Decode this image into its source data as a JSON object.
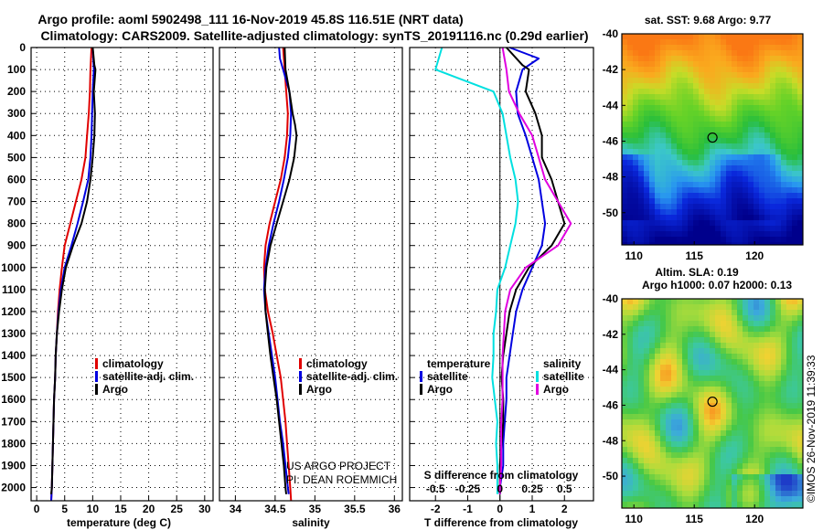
{
  "header": {
    "title_line1": "Argo profile: aoml 5902498_111 16-Nov-2019 45.8S 116.51E (NRT data)",
    "title_line2": "Climatology: CARS2009. Satellite-adjusted climatology: synTS_20191116.nc (0.29d earlier)"
  },
  "colors": {
    "climatology": "#e00000",
    "satellite": "#0000e0",
    "argo": "#000000",
    "salinity_satellite": "#00e0e0",
    "salinity_argo": "#e000e0",
    "grid": "#000000"
  },
  "depth_axis": {
    "ylim": [
      0,
      2060
    ],
    "ticks": [
      0,
      100,
      200,
      300,
      400,
      500,
      600,
      700,
      800,
      900,
      1000,
      1100,
      1200,
      1300,
      1400,
      1500,
      1600,
      1700,
      1800,
      1900,
      2000
    ]
  },
  "chart_data": [
    {
      "type": "line",
      "xlabel": "temperature (deg C)",
      "xlim": [
        -1,
        31.5
      ],
      "xticks": [
        0,
        5,
        10,
        15,
        20,
        25,
        30
      ],
      "legend": [
        "climatology",
        "satellite-adj. clim.",
        "Argo"
      ],
      "legend_position": "lower-right",
      "series": [
        {
          "name": "climatology",
          "y": [
            0,
            100,
            200,
            300,
            400,
            500,
            600,
            700,
            800,
            900,
            1000,
            1100,
            1200,
            1300,
            1400,
            1500,
            1600,
            1700,
            1800,
            1900,
            2000,
            2060
          ],
          "x": [
            9.8,
            9.6,
            9.5,
            9.3,
            9.0,
            8.7,
            8.0,
            7.0,
            6.0,
            5.0,
            4.5,
            4.1,
            3.8,
            3.6,
            3.4,
            3.3,
            3.1,
            3.0,
            2.9,
            2.8,
            2.7,
            2.6
          ]
        },
        {
          "name": "satellite-adj. clim.",
          "y": [
            0,
            100,
            200,
            300,
            400,
            500,
            600,
            700,
            800,
            900,
            1000,
            1100,
            1200,
            1300,
            1400,
            1500,
            1600,
            1700,
            1800,
            1900,
            2000,
            2060
          ],
          "x": [
            10.0,
            10.2,
            10.0,
            9.9,
            9.8,
            9.6,
            9.2,
            8.3,
            7.3,
            6.2,
            5.0,
            4.3,
            3.9,
            3.6,
            3.4,
            3.3,
            3.1,
            3.0,
            2.9,
            2.8,
            2.7,
            2.6
          ]
        },
        {
          "name": "Argo",
          "y": [
            0,
            80,
            100,
            200,
            300,
            400,
            500,
            600,
            700,
            800,
            900,
            1000,
            1100,
            1200,
            1300,
            1400,
            1500,
            1600,
            1700,
            1800,
            1900,
            2000,
            2030
          ],
          "x": [
            10.0,
            10.3,
            10.5,
            10.2,
            10.4,
            10.3,
            10.0,
            9.6,
            9.0,
            8.0,
            6.5,
            5.2,
            4.5,
            4.0,
            3.6,
            3.4,
            3.3,
            3.1,
            3.0,
            2.9,
            2.8,
            2.7,
            2.6
          ]
        }
      ]
    },
    {
      "type": "line",
      "xlabel": "salinity",
      "xlim": [
        33.8,
        36.1
      ],
      "xticks": [
        34,
        34.5,
        35,
        35.5,
        36
      ],
      "xticklabels": [
        "34",
        "34.5",
        "35",
        "35.5",
        "36"
      ],
      "legend": [
        "climatology",
        "satellite-adj. clim.",
        "Argo"
      ],
      "legend_position": "lower-right",
      "annotation": [
        "US ARGO PROJECT",
        "PI: DEAN ROEMMICH"
      ],
      "series": [
        {
          "name": "climatology",
          "y": [
            0,
            100,
            200,
            300,
            400,
            500,
            600,
            700,
            800,
            900,
            1000,
            1100,
            1200,
            1300,
            1400,
            1500,
            1600,
            1700,
            1800,
            1900,
            2000,
            2060
          ],
          "x": [
            34.6,
            34.62,
            34.64,
            34.66,
            34.65,
            34.62,
            34.57,
            34.5,
            34.43,
            34.38,
            34.36,
            34.37,
            34.41,
            34.47,
            34.52,
            34.57,
            34.6,
            34.63,
            34.65,
            34.67,
            34.69,
            34.7
          ]
        },
        {
          "name": "satellite-adj. clim.",
          "y": [
            0,
            50,
            100,
            200,
            300,
            400,
            500,
            600,
            700,
            800,
            900,
            1000,
            1100,
            1200,
            1300,
            1400,
            1500,
            1600,
            1700,
            1800,
            1900,
            2000,
            2030
          ],
          "x": [
            34.55,
            34.56,
            34.6,
            34.68,
            34.7,
            34.69,
            34.66,
            34.61,
            34.55,
            34.48,
            34.42,
            34.38,
            34.36,
            34.38,
            34.42,
            34.46,
            34.5,
            34.53,
            34.56,
            34.6,
            34.63,
            34.66,
            34.67
          ]
        },
        {
          "name": "Argo",
          "y": [
            0,
            100,
            200,
            300,
            350,
            400,
            500,
            600,
            700,
            800,
            900,
            1000,
            1100,
            1200,
            1300,
            1400,
            1500,
            1600,
            1700,
            1800,
            1900,
            2000,
            2030
          ],
          "x": [
            34.62,
            34.63,
            34.68,
            34.72,
            34.75,
            34.77,
            34.74,
            34.68,
            34.6,
            34.52,
            34.44,
            34.39,
            34.37,
            34.38,
            34.41,
            34.44,
            34.48,
            34.52,
            34.55,
            34.58,
            34.61,
            34.63,
            34.64
          ]
        }
      ]
    },
    {
      "type": "line",
      "xlabel": "T difference from climatology",
      "xlim": [
        -2.8,
        2.9
      ],
      "xticks": [
        -2,
        -1,
        0,
        1,
        2
      ],
      "secondary_xlabel": "S difference from climatology",
      "secondary_xticklabels": [
        "-0.5",
        "-0.25",
        "0",
        "0.25",
        "0.5"
      ],
      "legend_temperature": {
        "title": "temperature",
        "items": [
          "satellite",
          "Argo"
        ]
      },
      "legend_salinity": {
        "title": "salinity",
        "items": [
          "satellite",
          "Argo"
        ]
      },
      "series": [
        {
          "name": "temperature satellite",
          "y": [
            0,
            50,
            100,
            200,
            300,
            400,
            500,
            600,
            700,
            800,
            900,
            1000,
            1100,
            1200,
            1300,
            1400,
            1500,
            1600,
            1700,
            1800,
            1900,
            2000,
            2030
          ],
          "x": [
            0.3,
            1.2,
            0.7,
            0.5,
            0.55,
            0.8,
            1.0,
            1.2,
            1.3,
            1.4,
            1.3,
            1.0,
            0.7,
            0.5,
            0.4,
            0.3,
            0.2,
            0.2,
            0.15,
            0.1,
            0.1,
            0.0,
            0.0
          ]
        },
        {
          "name": "temperature Argo",
          "y": [
            0,
            80,
            100,
            200,
            300,
            400,
            500,
            600,
            700,
            800,
            900,
            1000,
            1100,
            1200,
            1300,
            1400,
            1500,
            1600,
            1700,
            1800,
            1900,
            2000,
            2030
          ],
          "x": [
            0.2,
            0.7,
            0.9,
            0.8,
            1.1,
            1.3,
            1.3,
            1.6,
            1.8,
            2.0,
            1.6,
            0.9,
            0.5,
            0.3,
            0.2,
            0.1,
            0.05,
            0.1,
            0.1,
            0.05,
            0.0,
            0.0,
            0.0
          ]
        },
        {
          "name": "salinity satellite",
          "y": [
            0,
            100,
            200,
            300,
            400,
            500,
            600,
            700,
            800,
            900,
            1000,
            1100,
            1200,
            1300,
            1400,
            1500,
            1600,
            1700,
            1800,
            1900,
            2000,
            2030
          ],
          "x": [
            -0.45,
            -0.5,
            -0.05,
            0.02,
            0.05,
            0.08,
            0.12,
            0.14,
            0.12,
            0.08,
            0.04,
            -0.02,
            -0.03,
            -0.05,
            -0.05,
            -0.06,
            -0.04,
            -0.02,
            -0.03,
            -0.02,
            -0.02,
            -0.02
          ]
        },
        {
          "name": "salinity Argo",
          "y": [
            0,
            100,
            200,
            300,
            400,
            500,
            600,
            700,
            800,
            900,
            1000,
            1100,
            1200,
            1300,
            1400,
            1500,
            1600,
            1700,
            1800,
            1900,
            2000,
            2030
          ],
          "x": [
            0.02,
            0.05,
            0.07,
            0.15,
            0.25,
            0.3,
            0.35,
            0.45,
            0.55,
            0.45,
            0.2,
            0.08,
            0.04,
            0.03,
            0.02,
            0.02,
            0.02,
            0.01,
            0.01,
            0.01,
            0.0,
            0.0
          ]
        }
      ]
    },
    {
      "type": "heatmap",
      "title": "sat. SST: 9.68 Argo: 9.77",
      "xlim": [
        109,
        124
      ],
      "ylim": [
        -51.8,
        -40
      ],
      "xticks": [
        110,
        115,
        120
      ],
      "yticks": [
        -40,
        -42,
        -44,
        -46,
        -48,
        -50
      ],
      "yticklabels": [
        "-40",
        "-42",
        "-44",
        "-46",
        "-48",
        "-50"
      ],
      "marker": {
        "lon": 116.51,
        "lat": -45.8
      }
    },
    {
      "type": "heatmap",
      "title": "Altim. SLA: 0.19",
      "subtitle": "Argo h1000: 0.07 h2000: 0.13",
      "xlim": [
        109,
        124
      ],
      "ylim": [
        -51.8,
        -40
      ],
      "xticks": [
        110,
        115,
        120
      ],
      "yticks": [
        -40,
        -42,
        -44,
        -46,
        -48,
        -50
      ],
      "yticklabels": [
        "-40",
        "-42",
        "-44",
        "-46",
        "-48",
        "-50"
      ],
      "marker": {
        "lon": 116.51,
        "lat": -45.8
      }
    }
  ],
  "side_text": "©IMOS 26-Nov-2019 11:39:33"
}
